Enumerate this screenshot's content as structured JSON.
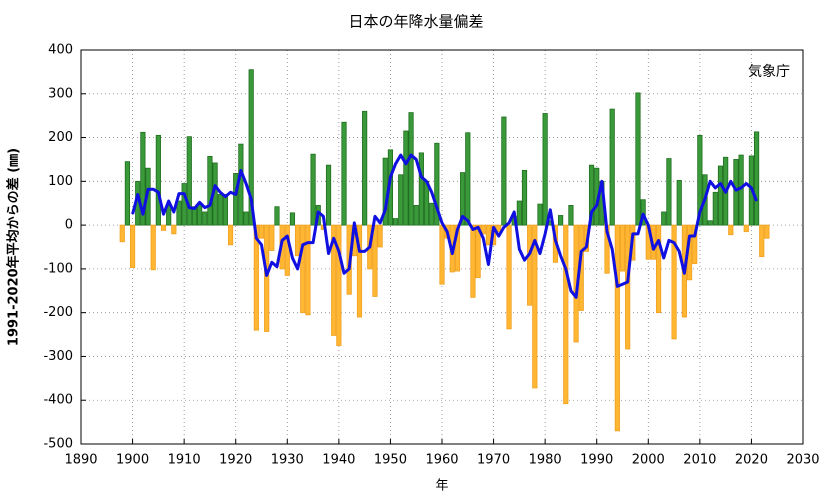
{
  "chart_data": {
    "type": "bar",
    "title": "日本の年降水量偏差",
    "source": "気象庁",
    "x_label": "年",
    "y_label": "1991-2020年平均からの差 (㎜)",
    "positive_color": "#3a9a3a",
    "negative_color": "#ffb733",
    "grid": true,
    "xlim": [
      1890,
      2030
    ],
    "xticks": [
      1890,
      1900,
      1910,
      1920,
      1930,
      1940,
      1950,
      1960,
      1970,
      1980,
      1990,
      2000,
      2010,
      2020,
      2030
    ],
    "ylim": [
      -500,
      400
    ],
    "yticks": [
      -500,
      -400,
      -300,
      -200,
      -100,
      0,
      100,
      200,
      300,
      400
    ],
    "x": [
      1898,
      1899,
      1900,
      1901,
      1902,
      1903,
      1904,
      1905,
      1906,
      1907,
      1908,
      1909,
      1910,
      1911,
      1912,
      1913,
      1914,
      1915,
      1916,
      1917,
      1918,
      1919,
      1920,
      1921,
      1922,
      1923,
      1924,
      1925,
      1926,
      1927,
      1928,
      1929,
      1930,
      1931,
      1932,
      1933,
      1934,
      1935,
      1936,
      1937,
      1938,
      1939,
      1940,
      1941,
      1942,
      1943,
      1944,
      1945,
      1946,
      1947,
      1948,
      1949,
      1950,
      1951,
      1952,
      1953,
      1954,
      1955,
      1956,
      1957,
      1958,
      1959,
      1960,
      1961,
      1962,
      1963,
      1964,
      1965,
      1966,
      1967,
      1968,
      1969,
      1970,
      1971,
      1972,
      1973,
      1974,
      1975,
      1976,
      1977,
      1978,
      1979,
      1980,
      1981,
      1982,
      1983,
      1984,
      1985,
      1986,
      1987,
      1988,
      1989,
      1990,
      1991,
      1992,
      1993,
      1994,
      1995,
      1996,
      1997,
      1998,
      1999,
      2000,
      2001,
      2002,
      2003,
      2004,
      2005,
      2006,
      2007,
      2008,
      2009,
      2010,
      2011,
      2012,
      2013,
      2014,
      2015,
      2016,
      2017,
      2018,
      2019,
      2020,
      2021,
      2022,
      2023
    ],
    "series": [
      {
        "type": "bar",
        "values": [
          -38,
          145,
          -97,
          100,
          212,
          130,
          -102,
          205,
          -12,
          45,
          -20,
          55,
          95,
          202,
          42,
          50,
          30,
          157,
          142,
          70,
          70,
          -45,
          118,
          185,
          30,
          355,
          -240,
          -30,
          -243,
          -58,
          42,
          -100,
          -115,
          28,
          -70,
          -200,
          -205,
          162,
          45,
          -10,
          137,
          -252,
          -275,
          235,
          -158,
          -70,
          -210,
          260,
          -100,
          -163,
          -50,
          153,
          172,
          15,
          115,
          215,
          257,
          45,
          165,
          100,
          50,
          187,
          -135,
          -30,
          -107,
          -105,
          120,
          211,
          -165,
          -120,
          -20,
          -45,
          -45,
          -15,
          247,
          -237,
          20,
          55,
          125,
          -183,
          -372,
          48,
          255,
          10,
          -85,
          22,
          -408,
          45,
          -267,
          -195,
          -60,
          137,
          130,
          100,
          -110,
          265,
          -470,
          -105,
          -283,
          -80,
          302,
          58,
          -78,
          -78,
          -200,
          30,
          152,
          -260,
          102,
          -210,
          -125,
          -88,
          205,
          115,
          10,
          75,
          135,
          155,
          -22,
          150,
          160,
          -15,
          158,
          213,
          -72,
          -30
        ]
      },
      {
        "type": "line",
        "color": "#1010e0",
        "values": [
          null,
          null,
          25,
          70,
          25,
          82,
          82,
          75,
          25,
          55,
          30,
          72,
          72,
          40,
          38,
          52,
          40,
          45,
          90,
          75,
          65,
          75,
          70,
          125,
          95,
          60,
          -30,
          -45,
          -115,
          -85,
          -95,
          -35,
          -25,
          -75,
          -100,
          -45,
          -40,
          -40,
          30,
          20,
          -65,
          -30,
          -60,
          -110,
          -100,
          5,
          -60,
          -60,
          -50,
          20,
          5,
          35,
          110,
          140,
          160,
          140,
          160,
          150,
          110,
          100,
          75,
          40,
          5,
          -15,
          -65,
          -10,
          20,
          10,
          -10,
          -5,
          -30,
          -90,
          -5,
          -25,
          -5,
          5,
          30,
          -55,
          -80,
          -65,
          -35,
          -65,
          -20,
          35,
          -35,
          -70,
          -100,
          -150,
          -165,
          -60,
          -50,
          30,
          45,
          100,
          -15,
          -55,
          -140,
          -135,
          -130,
          -20,
          -20,
          25,
          0,
          -55,
          -35,
          -75,
          -35,
          -40,
          -60,
          -110,
          -25,
          -25,
          30,
          60,
          100,
          85,
          95,
          75,
          100,
          80,
          85,
          95,
          85,
          55,
          null,
          null
        ]
      }
    ]
  }
}
